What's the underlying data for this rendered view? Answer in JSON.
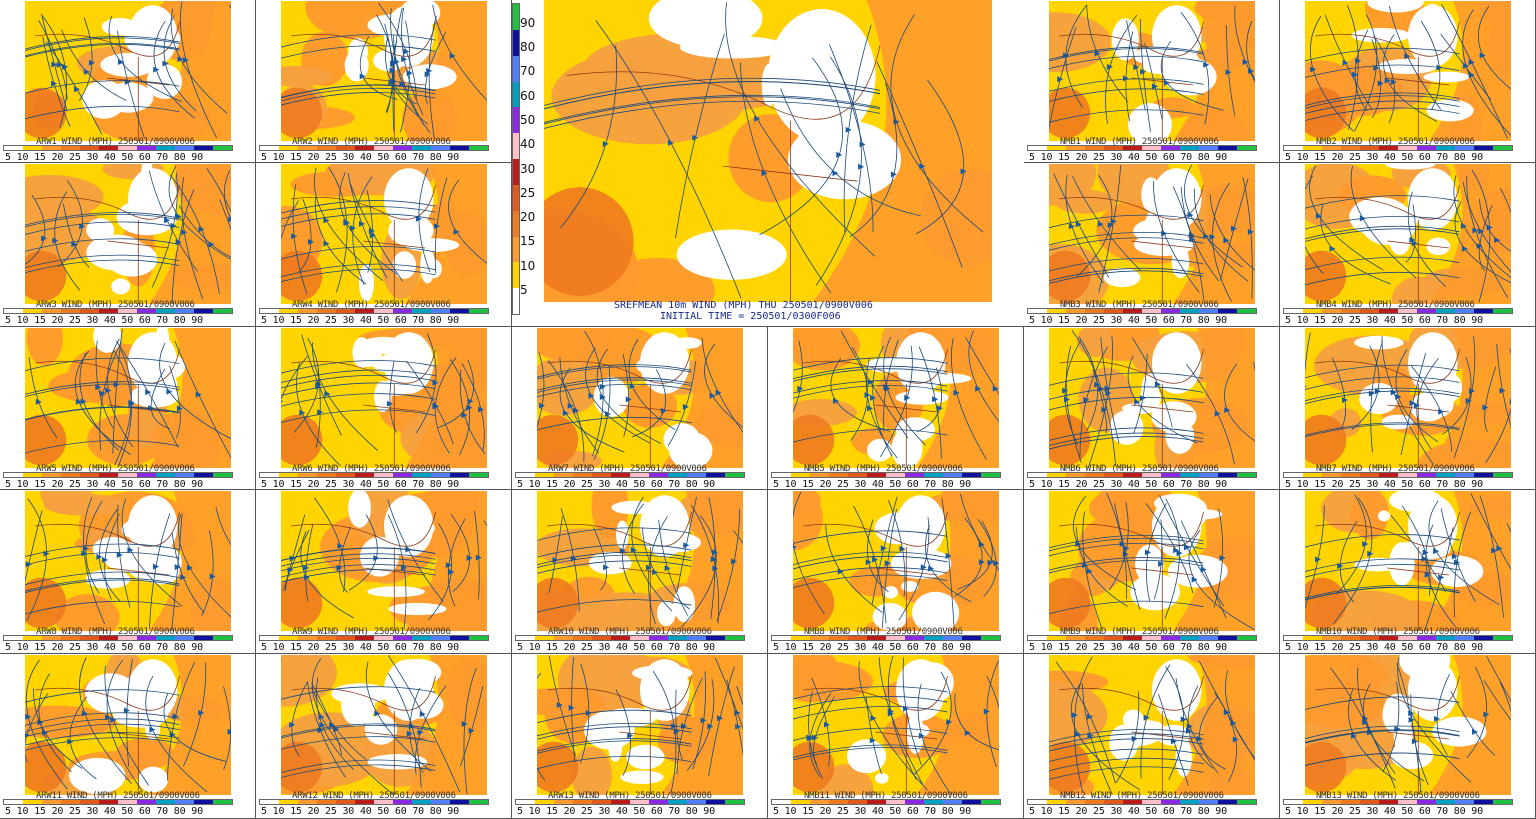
{
  "colorbar": {
    "labels": [
      "5",
      "10",
      "15",
      "20",
      "25",
      "30",
      "40",
      "50",
      "60",
      "70",
      "80",
      "90"
    ],
    "colors": [
      "#ffffff",
      "#ffd400",
      "#ff9a2e",
      "#f07a20",
      "#e05a1c",
      "#b81c1c",
      "#ffc0c8",
      "#8a2be2",
      "#00a0c0",
      "#5080ff",
      "#1010a0",
      "#20c040"
    ],
    "label_string": "5 10 15 20 25 30 40 50 60 70 80 90"
  },
  "main": {
    "title": "SREFMEAN 10m WIND (MPH) THU 250501/0900V006",
    "init": "INITIAL TIME = 250501/0300F006"
  },
  "panels": [
    {
      "label": "ARW1 WIND (MPH) 250501/0900V006"
    },
    {
      "label": "ARW2 WIND (MPH) 250501/0900V006"
    },
    {
      "label": "NMB1 WIND (MPH) 250501/0900V006"
    },
    {
      "label": "NMB2 WIND (MPH) 250501/0900V006"
    },
    {
      "label": "ARW3 WIND (MPH) 250501/0900V006"
    },
    {
      "label": "ARW4 WIND (MPH) 250501/0900V006"
    },
    {
      "label": "NMB3 WIND (MPH) 250501/0900V006"
    },
    {
      "label": "NMB4 WIND (MPH) 250501/0900V006"
    },
    {
      "label": "ARW5 WIND (MPH) 250501/0900V006"
    },
    {
      "label": "ARW6 WIND (MPH) 250501/0900V006"
    },
    {
      "label": "ARW7 WIND (MPH) 250501/0900V006"
    },
    {
      "label": "NMB5 WIND (MPH) 250501/0900V006"
    },
    {
      "label": "NMB6 WIND (MPH) 250501/0900V006"
    },
    {
      "label": "NMB7 WIND (MPH) 250501/0900V006"
    },
    {
      "label": "ARW8 WIND (MPH) 250501/0900V006"
    },
    {
      "label": "ARW9 WIND (MPH) 250501/0900V006"
    },
    {
      "label": "ARW10 WIND (MPH) 250501/0900V006"
    },
    {
      "label": "NMB8 WIND (MPH) 250501/0900V006"
    },
    {
      "label": "NMB9 WIND (MPH) 250501/0900V006"
    },
    {
      "label": "NMB10 WIND (MPH) 250501/0900V006"
    },
    {
      "label": "ARW11 WIND (MPH) 250501/0900V006"
    },
    {
      "label": "ARW12 WIND (MPH) 250501/0900V006"
    },
    {
      "label": "ARW13 WIND (MPH) 250501/0900V006"
    },
    {
      "label": "NMB11 WIND (MPH) 250501/0900V006"
    },
    {
      "label": "NMB12 WIND (MPH) 250501/0900V006"
    },
    {
      "label": "NMB13 WIND (MPH) 250501/0900V006"
    }
  ]
}
